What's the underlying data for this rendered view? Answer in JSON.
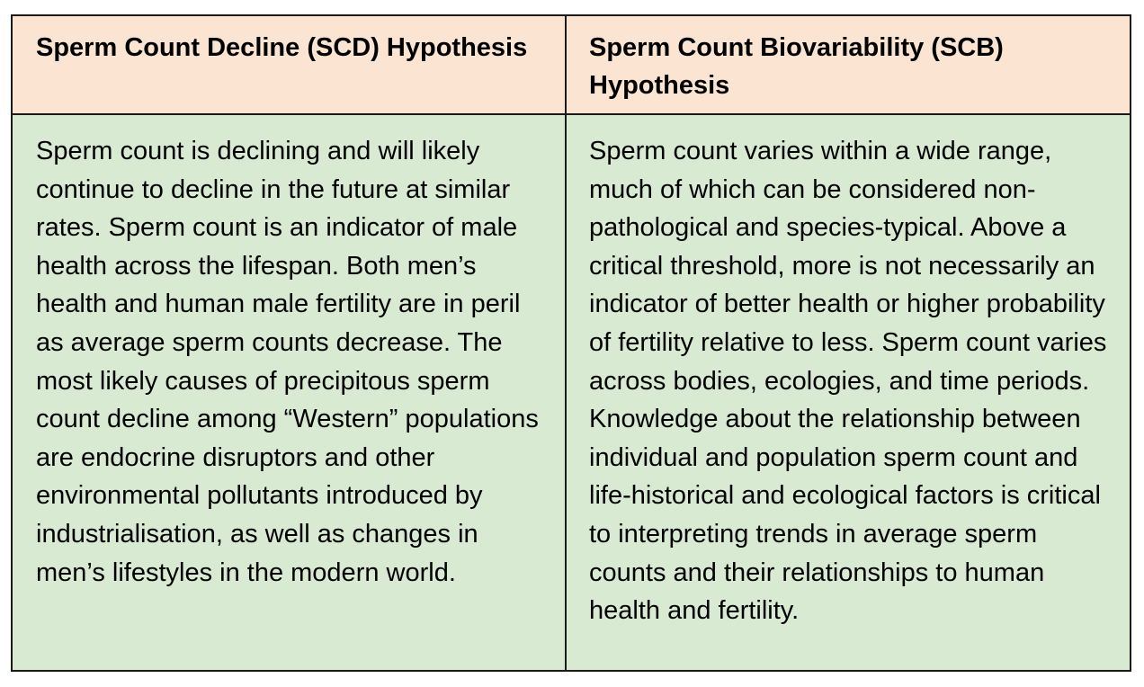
{
  "table": {
    "headers": [
      "Sperm Count Decline (SCD) Hypothesis",
      "Sperm Count Biovariability (SCB) Hypothesis"
    ],
    "rows": [
      [
        "Sperm count is declining and will likely continue to decline in the future at similar rates. Sperm count is an indicator of male health across the lifespan. Both men’s health and human male fertility are in peril as average sperm counts decrease. The most likely causes of precipitous sperm count decline among “Western” populations are endocrine disruptors and other environmental pollutants introduced by industrialisation, as well as changes in men’s lifestyles in the modern world.",
        "Sperm count varies within a wide range, much of which can be considered non-pathological and species-typical. Above a critical threshold, more is not necessarily an indicator of better health or higher probability of fertility relative to less. Sperm count varies across bodies, ecologies, and time periods. Knowledge about the relationship between individual and population sperm count and life-historical and ecological factors is critical to interpreting trends in average sperm counts and their relationships to human health and fertility."
      ]
    ]
  },
  "colors": {
    "header_background": "#fbe4d2",
    "body_background": "#d9ead3",
    "border": "#1a1a1a"
  }
}
